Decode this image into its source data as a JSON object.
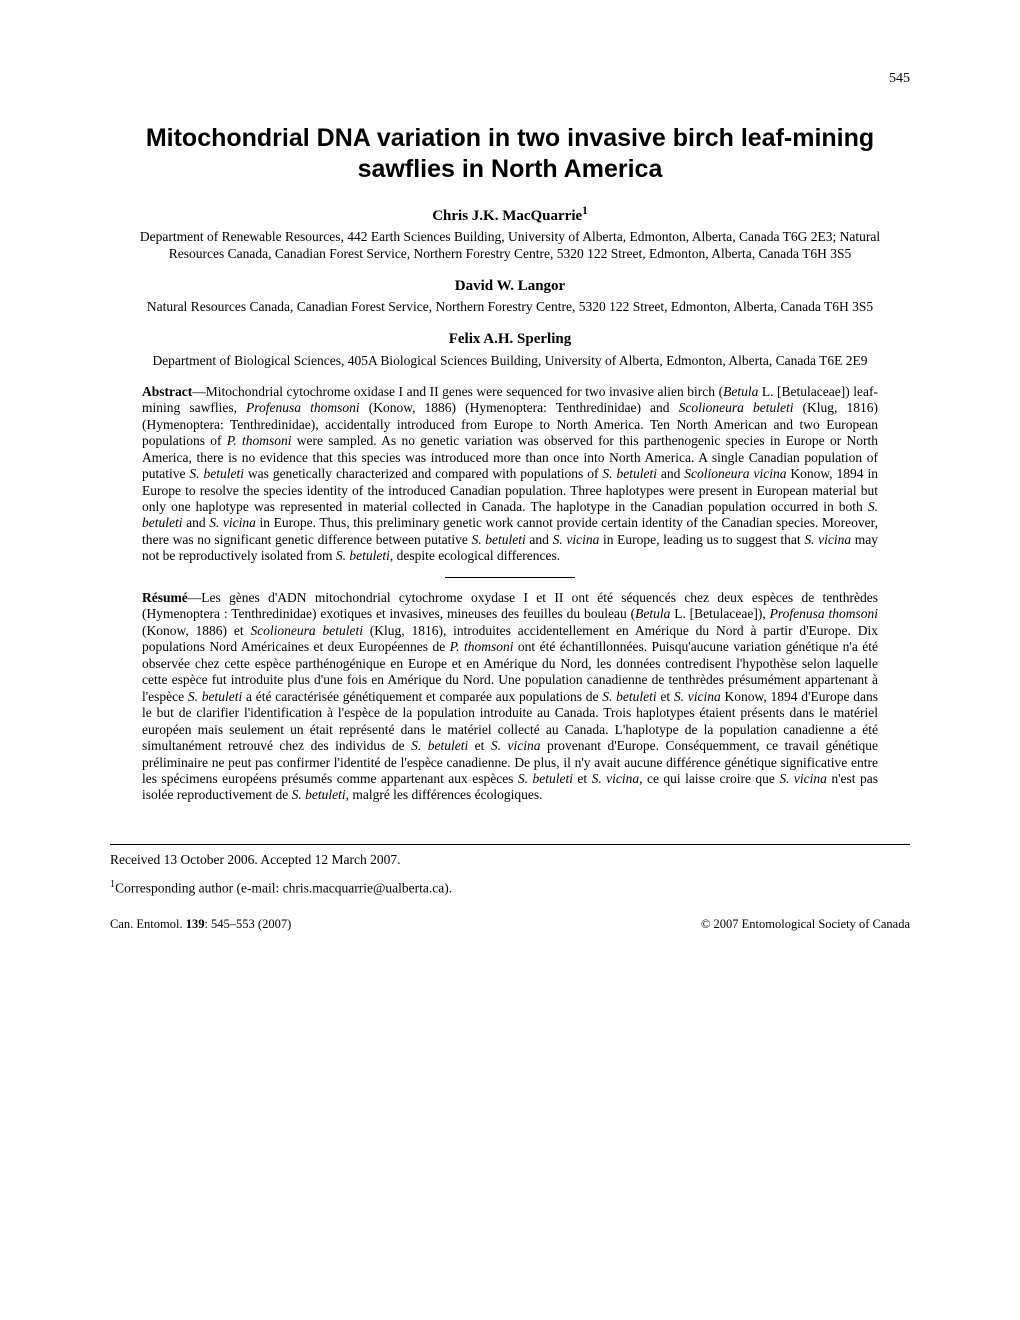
{
  "page_number": "545",
  "title": "Mitochondrial DNA variation in two invasive birch leaf-mining sawflies in North America",
  "authors": [
    {
      "name_html": "Chris J.K. MacQuarrie<sup>1</sup>",
      "affiliation": "Department of Renewable Resources, 442 Earth Sciences Building, University of Alberta, Edmonton, Alberta, Canada T6G 2E3; Natural Resources Canada, Canadian Forest Service, Northern Forestry Centre, 5320 122 Street, Edmonton, Alberta, Canada T6H 3S5"
    },
    {
      "name_html": "David W. Langor",
      "affiliation": "Natural Resources Canada, Canadian Forest Service, Northern Forestry Centre, 5320 122 Street, Edmonton, Alberta, Canada T6H 3S5"
    },
    {
      "name_html": "Felix A.H. Sperling",
      "affiliation": "Department of Biological Sciences, 405A Biological Sciences Building, University of Alberta, Edmonton, Alberta, Canada T6E 2E9"
    }
  ],
  "abstract_en_label": "Abstract",
  "abstract_en_html": "—Mitochondrial cytochrome oxidase I and II genes were sequenced for two invasive alien birch (<em>Betula</em> L. [Betulaceae]) leaf-mining sawflies, <em>Profenusa thomsoni</em> (Konow, 1886) (Hymenoptera: Tenthredinidae) and <em>Scolioneura betuleti</em> (Klug, 1816) (Hymenoptera: Tenthredinidae), accidentally introduced from Europe to North America. Ten North American and two European populations of <em>P. thomsoni</em> were sampled. As no genetic variation was observed for this parthenogenic species in Europe or North America, there is no evidence that this species was introduced more than once into North America. A single Canadian population of putative <em>S. betuleti</em> was genetically characterized and compared with populations of <em>S. betuleti</em> and <em>Scolioneura vicina</em> Konow, 1894 in Europe to resolve the species identity of the introduced Canadian population. Three haplotypes were present in European material but only one haplotype was represented in material collected in Canada. The haplotype in the Canadian population occurred in both <em>S. betuleti</em> and <em>S. vicina</em> in Europe. Thus, this preliminary genetic work cannot provide certain identity of the Canadian species. Moreover, there was no significant genetic difference between putative <em>S. betuleti</em> and <em>S. vicina</em> in Europe, leading us to suggest that <em>S. vicina</em> may not be reproductively isolated from <em>S. betuleti</em>, despite ecological differences.",
  "abstract_fr_label": "Résumé",
  "abstract_fr_html": "—Les gènes d'ADN mitochondrial cytochrome oxydase I et II ont été séquencés chez deux espèces de tenthrèdes (Hymenoptera : Tenthredinidae) exotiques et invasives, mineuses des feuilles du bouleau (<em>Betula</em> L. [Betulaceae]), <em>Profenusa thomsoni</em> (Konow, 1886) et <em>Scolioneura betuleti</em> (Klug, 1816), introduites accidentellement en Amérique du Nord à partir d'Europe. Dix populations Nord Américaines et deux Européennes de <em>P. thomsoni</em> ont été échantillonnées. Puisqu'aucune variation génétique n'a été observée chez cette espèce parthénogénique en Europe et en Amérique du Nord, les données contredisent l'hypothèse selon laquelle cette espèce fut introduite plus d'une fois en Amérique du Nord. Une population canadienne de tenthrèdes présumément appartenant à l'espèce <em>S. betuleti</em> a été caractérisée génétiquement et comparée aux populations de <em>S. betuleti</em> et <em>S. vicina</em> Konow, 1894 d'Europe dans le but de clarifier l'identification à l'espèce de la population introduite au Canada. Trois haplotypes étaient présents dans le matériel européen mais seulement un était représenté dans le matériel collecté au Canada. L'haplotype de la population canadienne a été simultanément retrouvé chez des individus de <em>S. betuleti</em> et <em>S. vicina</em> provenant d'Europe. Conséquemment, ce travail génétique préliminaire ne peut pas confirmer l'identité de l'espèce canadienne. De plus, il n'y avait aucune différence génétique significative entre les spécimens européens présumés comme appartenant aux espèces <em>S. betuleti</em> et <em>S. vicina</em>, ce qui laisse croire que <em>S. vicina</em> n'est pas isolée reproductivement de <em>S. betuleti</em>, malgré les différences écologiques.",
  "received": "Received 13 October 2006. Accepted 12 March 2007.",
  "corresponding_html": "<sup>1</sup>Corresponding author (e-mail: chris.macquarrie@ualberta.ca).",
  "footer_left_html": "Can. Entomol. <b>139</b>: 545–553 (2007)",
  "footer_right": "© 2007 Entomological Society of Canada"
}
